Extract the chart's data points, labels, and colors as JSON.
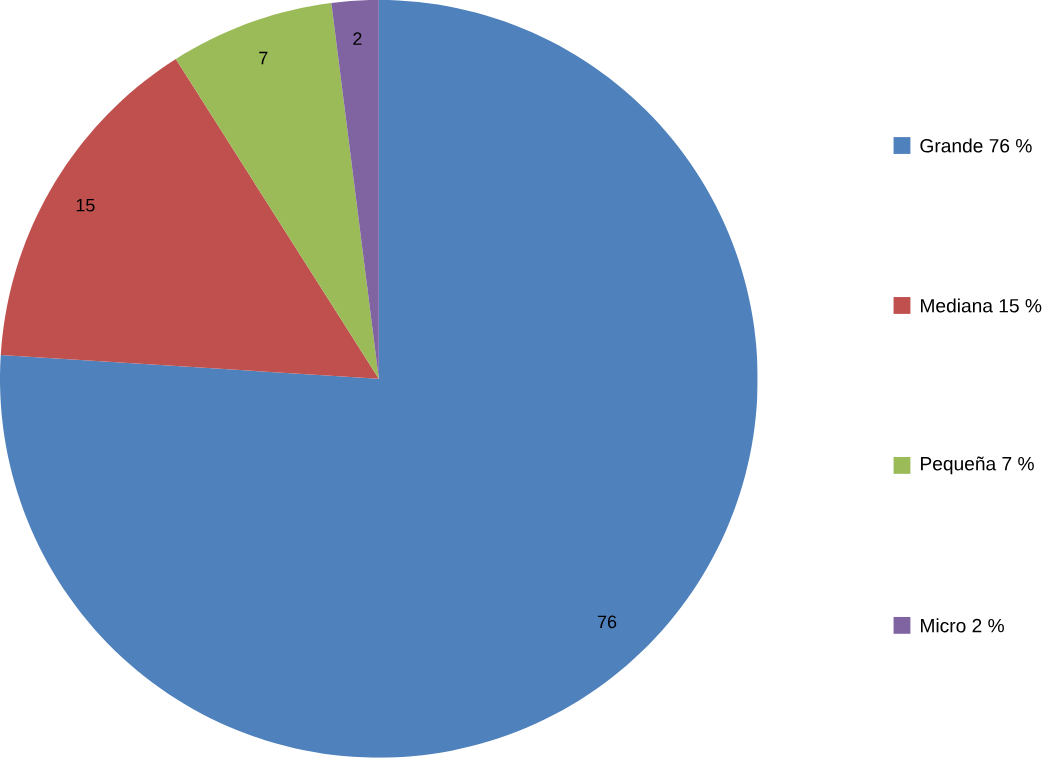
{
  "chart_data": {
    "type": "pie",
    "categories": [
      "Grande 76  %",
      "Mediana 15  %",
      "Pequeña 7  %",
      "Micro 2  %"
    ],
    "values": [
      76,
      15,
      7,
      2
    ],
    "colors": [
      "#4f81bd",
      "#c0504d",
      "#9bbb59",
      "#8064a2"
    ],
    "data_labels": true,
    "legend": "right"
  }
}
